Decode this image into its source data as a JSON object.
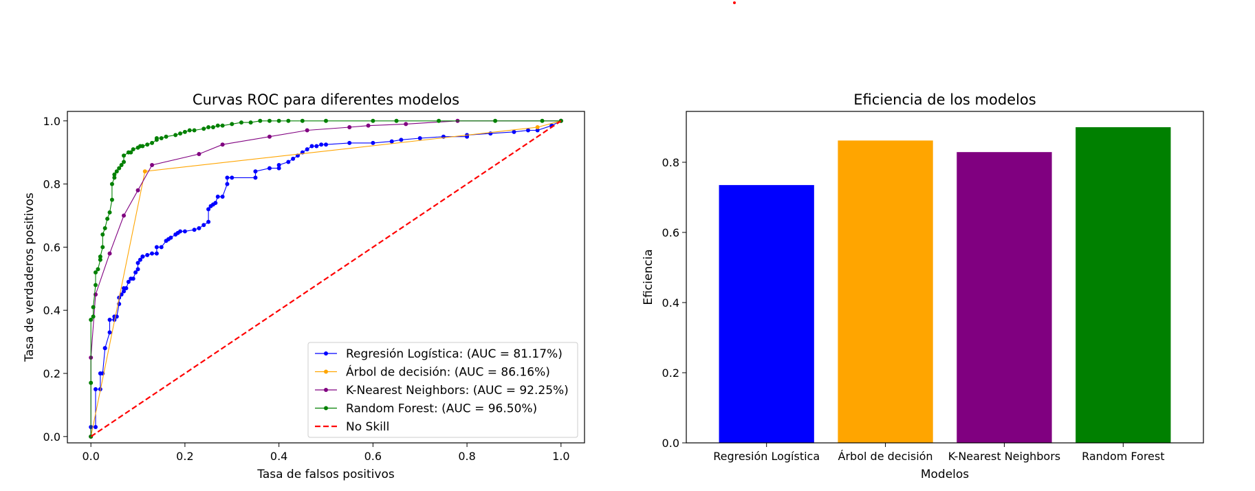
{
  "chart_data": [
    {
      "type": "line",
      "title": "Curvas ROC para diferentes modelos",
      "xlabel": "Tasa de falsos positivos",
      "ylabel": "Tasa de verdaderos positivos",
      "xlim": [
        -0.05,
        1.05
      ],
      "ylim": [
        -0.02,
        1.03
      ],
      "xticks": [
        "0.0",
        "0.2",
        "0.4",
        "0.6",
        "0.8",
        "1.0"
      ],
      "yticks": [
        "0.0",
        "0.2",
        "0.4",
        "0.6",
        "0.8",
        "1.0"
      ],
      "legend_position": "lower-right",
      "series": [
        {
          "name": "Regresión Logística: (AUC = 81.17%)",
          "color": "#0000ff",
          "marker": "dot",
          "x": [
            0,
            0,
            0.01,
            0.01,
            0.02,
            0.02,
            0.025,
            0.03,
            0.03,
            0.04,
            0.04,
            0.05,
            0.05,
            0.055,
            0.06,
            0.06,
            0.065,
            0.07,
            0.07,
            0.075,
            0.08,
            0.085,
            0.09,
            0.095,
            0.1,
            0.1,
            0.105,
            0.11,
            0.11,
            0.12,
            0.13,
            0.14,
            0.14,
            0.15,
            0.16,
            0.165,
            0.17,
            0.18,
            0.185,
            0.19,
            0.2,
            0.22,
            0.23,
            0.24,
            0.25,
            0.25,
            0.255,
            0.26,
            0.265,
            0.27,
            0.28,
            0.29,
            0.29,
            0.3,
            0.35,
            0.35,
            0.38,
            0.4,
            0.4,
            0.42,
            0.43,
            0.44,
            0.45,
            0.46,
            0.47,
            0.48,
            0.49,
            0.5,
            0.55,
            0.6,
            0.64,
            0.66,
            0.7,
            0.75,
            0.8,
            0.8,
            0.85,
            0.9,
            0.93,
            0.95,
            0.98,
            1.0
          ],
          "y": [
            0,
            0.03,
            0.03,
            0.15,
            0.15,
            0.2,
            0.2,
            0.28,
            0.28,
            0.33,
            0.37,
            0.37,
            0.38,
            0.38,
            0.42,
            0.44,
            0.45,
            0.46,
            0.47,
            0.47,
            0.49,
            0.5,
            0.5,
            0.52,
            0.53,
            0.55,
            0.56,
            0.57,
            0.57,
            0.575,
            0.58,
            0.58,
            0.6,
            0.6,
            0.62,
            0.625,
            0.63,
            0.64,
            0.645,
            0.65,
            0.65,
            0.655,
            0.66,
            0.67,
            0.68,
            0.72,
            0.73,
            0.735,
            0.74,
            0.76,
            0.76,
            0.8,
            0.82,
            0.82,
            0.82,
            0.84,
            0.85,
            0.85,
            0.86,
            0.87,
            0.88,
            0.89,
            0.9,
            0.91,
            0.92,
            0.92,
            0.925,
            0.925,
            0.93,
            0.93,
            0.935,
            0.94,
            0.945,
            0.95,
            0.95,
            0.955,
            0.96,
            0.965,
            0.97,
            0.97,
            0.985,
            1.0
          ]
        },
        {
          "name": "Árbol de decisión: (AUC = 86.16%)",
          "color": "#ffa500",
          "marker": "dot",
          "x": [
            0,
            0.115,
            0.95,
            1.0
          ],
          "y": [
            0,
            0.84,
            0.98,
            1.0
          ]
        },
        {
          "name": "K-Nearest Neighbors: (AUC = 92.25%)",
          "color": "#800080",
          "marker": "dot",
          "x": [
            0,
            0,
            0.01,
            0.04,
            0.07,
            0.1,
            0.13,
            0.23,
            0.28,
            0.38,
            0.46,
            0.55,
            0.59,
            0.67,
            0.78,
            1.0
          ],
          "y": [
            0,
            0.25,
            0.45,
            0.58,
            0.7,
            0.78,
            0.86,
            0.895,
            0.925,
            0.95,
            0.97,
            0.98,
            0.985,
            0.99,
            1.0,
            1.0
          ]
        },
        {
          "name": "Random Forest: (AUC = 96.50%)",
          "color": "#008000",
          "marker": "dot",
          "x": [
            0,
            0,
            0,
            0.005,
            0.005,
            0.01,
            0.01,
            0.015,
            0.02,
            0.02,
            0.025,
            0.025,
            0.03,
            0.035,
            0.04,
            0.045,
            0.045,
            0.05,
            0.05,
            0.055,
            0.06,
            0.065,
            0.07,
            0.07,
            0.08,
            0.085,
            0.09,
            0.1,
            0.105,
            0.11,
            0.12,
            0.13,
            0.14,
            0.14,
            0.15,
            0.16,
            0.18,
            0.19,
            0.2,
            0.21,
            0.22,
            0.24,
            0.25,
            0.26,
            0.27,
            0.28,
            0.3,
            0.32,
            0.34,
            0.36,
            0.38,
            0.4,
            0.42,
            0.45,
            0.5,
            0.6,
            0.65,
            0.74,
            0.86,
            0.96,
            1.0
          ],
          "y": [
            0,
            0.17,
            0.37,
            0.38,
            0.41,
            0.48,
            0.52,
            0.53,
            0.56,
            0.57,
            0.6,
            0.64,
            0.66,
            0.69,
            0.71,
            0.75,
            0.8,
            0.82,
            0.83,
            0.84,
            0.85,
            0.86,
            0.87,
            0.89,
            0.9,
            0.9,
            0.91,
            0.915,
            0.92,
            0.92,
            0.925,
            0.93,
            0.94,
            0.945,
            0.945,
            0.95,
            0.955,
            0.96,
            0.965,
            0.97,
            0.97,
            0.975,
            0.98,
            0.98,
            0.985,
            0.985,
            0.99,
            0.995,
            0.995,
            1.0,
            1.0,
            1.0,
            1.0,
            1.0,
            1.0,
            1.0,
            1.0,
            1.0,
            1.0,
            1.0,
            1.0
          ]
        },
        {
          "name": "No Skill",
          "color": "#ff0000",
          "marker": "none",
          "dashed": true,
          "x": [
            0,
            1
          ],
          "y": [
            0,
            1
          ]
        }
      ]
    },
    {
      "type": "bar",
      "title": "Eficiencia de los modelos",
      "xlabel": "Modelos",
      "ylabel": "Eficiencia",
      "ylim": [
        0,
        0.945
      ],
      "yticks": [
        "0.0",
        "0.2",
        "0.4",
        "0.6",
        "0.8"
      ],
      "categories": [
        "Regresión Logística",
        "Árbol de decisión",
        "K-Nearest Neighbors",
        "Random Forest"
      ],
      "values": [
        0.735,
        0.862,
        0.829,
        0.9
      ],
      "colors": [
        "#0000ff",
        "#ffa500",
        "#800080",
        "#008000"
      ]
    }
  ]
}
